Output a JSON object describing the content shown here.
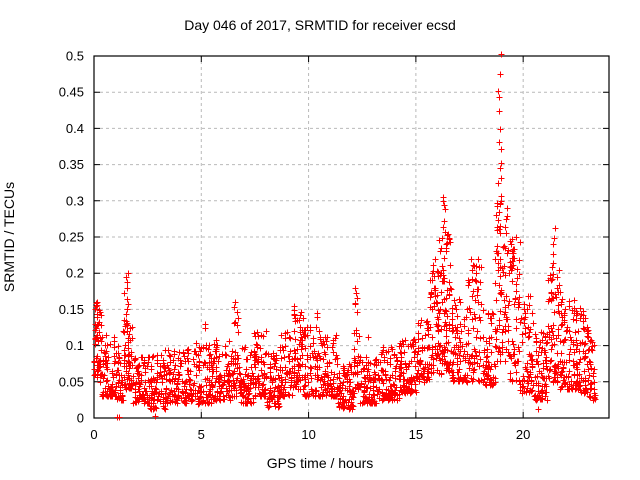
{
  "chart_data": {
    "type": "scatter",
    "title": "Day 046 of 2017, SRMTID for receiver ecsd",
    "xlabel": "GPS time / hours",
    "ylabel": "SRMTID / TECUs",
    "xlim": [
      0,
      24
    ],
    "ylim": [
      0,
      0.5
    ],
    "xticks": [
      [
        0,
        "0"
      ],
      [
        5,
        "5"
      ],
      [
        10,
        "10"
      ],
      [
        15,
        "15"
      ],
      [
        20,
        "20"
      ]
    ],
    "yticks": [
      [
        0,
        "0"
      ],
      [
        0.05,
        "0.05"
      ],
      [
        0.1,
        "0.1"
      ],
      [
        0.15,
        "0.15"
      ],
      [
        0.2,
        "0.2"
      ],
      [
        0.25,
        "0.25"
      ],
      [
        0.3,
        "0.3"
      ],
      [
        0.35,
        "0.35"
      ],
      [
        0.4,
        "0.4"
      ],
      [
        0.45,
        "0.45"
      ],
      [
        0.5,
        "0.5"
      ]
    ],
    "grid": true,
    "legend": "none",
    "marker": {
      "shape": "plus",
      "color": "#ff0000",
      "size": 7
    },
    "colors": {
      "background": "#ffffff",
      "border": "#000000",
      "grid": "#b9b9b9",
      "text": "#000000"
    },
    "series": {
      "name": "SRMTID",
      "bands_key": [
        "t_start",
        "t_end",
        "y_min",
        "y_max",
        "count",
        "low_bias_exponent"
      ],
      "bands": [
        [
          0.0,
          0.35,
          0.05,
          0.16,
          45,
          1.0
        ],
        [
          0.35,
          1.05,
          0.03,
          0.115,
          70,
          1.7
        ],
        [
          1.05,
          1.35,
          0.025,
          0.1,
          30,
          1.7
        ],
        [
          1.35,
          1.8,
          0.04,
          0.135,
          55,
          1.4
        ],
        [
          1.8,
          2.6,
          0.02,
          0.085,
          75,
          1.7
        ],
        [
          2.6,
          3.3,
          0.013,
          0.09,
          70,
          1.7
        ],
        [
          3.3,
          4.6,
          0.02,
          0.095,
          120,
          1.7
        ],
        [
          4.6,
          5.6,
          0.02,
          0.105,
          95,
          1.7
        ],
        [
          5.6,
          6.4,
          0.025,
          0.11,
          80,
          1.7
        ],
        [
          6.4,
          6.85,
          0.03,
          0.145,
          45,
          1.6
        ],
        [
          6.85,
          7.45,
          0.02,
          0.1,
          60,
          1.7
        ],
        [
          7.45,
          8.05,
          0.03,
          0.12,
          65,
          1.7
        ],
        [
          8.05,
          8.65,
          0.015,
          0.09,
          60,
          1.7
        ],
        [
          8.65,
          9.25,
          0.03,
          0.12,
          60,
          1.7
        ],
        [
          9.25,
          9.75,
          0.04,
          0.15,
          55,
          1.6
        ],
        [
          9.75,
          10.65,
          0.03,
          0.13,
          85,
          1.8
        ],
        [
          10.65,
          11.35,
          0.03,
          0.115,
          70,
          1.8
        ],
        [
          11.35,
          12.1,
          0.013,
          0.075,
          85,
          1.6
        ],
        [
          12.1,
          12.35,
          0.04,
          0.12,
          20,
          1.5
        ],
        [
          12.35,
          13.25,
          0.02,
          0.085,
          85,
          1.6
        ],
        [
          13.25,
          14.25,
          0.025,
          0.1,
          90,
          1.7
        ],
        [
          14.25,
          15.05,
          0.035,
          0.11,
          80,
          1.6
        ],
        [
          15.05,
          15.65,
          0.05,
          0.135,
          60,
          1.6
        ],
        [
          15.65,
          16.05,
          0.06,
          0.205,
          50,
          1.2
        ],
        [
          16.05,
          16.65,
          0.06,
          0.26,
          80,
          1.4
        ],
        [
          16.65,
          17.35,
          0.05,
          0.165,
          70,
          1.6
        ],
        [
          17.35,
          18.15,
          0.05,
          0.22,
          75,
          1.6
        ],
        [
          18.15,
          18.7,
          0.045,
          0.15,
          55,
          1.6
        ],
        [
          18.7,
          19.25,
          0.07,
          0.3,
          70,
          1.1
        ],
        [
          19.25,
          19.85,
          0.05,
          0.25,
          65,
          1.5
        ],
        [
          19.85,
          20.45,
          0.035,
          0.17,
          60,
          1.7
        ],
        [
          20.45,
          21.15,
          0.025,
          0.12,
          70,
          1.7
        ],
        [
          21.15,
          21.7,
          0.05,
          0.21,
          65,
          1.3
        ],
        [
          21.7,
          22.45,
          0.04,
          0.165,
          80,
          1.7
        ],
        [
          22.45,
          23.05,
          0.035,
          0.15,
          70,
          1.6
        ],
        [
          23.05,
          23.35,
          0.025,
          0.12,
          30,
          1.7
        ]
      ],
      "spikes_key": [
        "t_center",
        "t_jitter",
        "values"
      ],
      "spikes": [
        {
          "t": 0.1,
          "j": 0.06,
          "values": [
            0.16,
            0.15,
            0.14,
            0.13
          ]
        },
        {
          "t": 1.5,
          "j": 0.12,
          "values": [
            0.2,
            0.195,
            0.188,
            0.18,
            0.173,
            0.165,
            0.157,
            0.15,
            0.143,
            0.136
          ]
        },
        {
          "t": 5.2,
          "j": 0.08,
          "values": [
            0.13,
            0.124
          ]
        },
        {
          "t": 6.6,
          "j": 0.08,
          "values": [
            0.16,
            0.154,
            0.147
          ]
        },
        {
          "t": 9.4,
          "j": 0.1,
          "values": [
            0.155,
            0.149,
            0.144,
            0.138
          ]
        },
        {
          "t": 10.45,
          "j": 0.08,
          "values": [
            0.145,
            0.139
          ]
        },
        {
          "t": 12.2,
          "j": 0.07,
          "values": [
            0.18,
            0.173,
            0.166,
            0.159,
            0.157,
            0.147,
            0.122
          ]
        },
        {
          "t": 15.85,
          "j": 0.1,
          "values": [
            0.22,
            0.212,
            0.196,
            0.19
          ]
        },
        {
          "t": 16.3,
          "j": 0.12,
          "values": [
            0.305,
            0.3,
            0.294,
            0.288,
            0.272,
            0.264,
            0.257,
            0.249,
            0.24,
            0.231
          ]
        },
        {
          "t": 17.8,
          "j": 0.15,
          "values": [
            0.22,
            0.21,
            0.2,
            0.19
          ]
        },
        {
          "t": 18.9,
          "j": 0.09,
          "values": [
            0.503,
            0.475,
            0.452,
            0.443,
            0.424,
            0.399,
            0.381,
            0.371,
            0.352,
            0.345,
            0.332,
            0.324,
            0.307,
            0.3,
            0.295,
            0.285,
            0.273,
            0.265
          ]
        },
        {
          "t": 19.5,
          "j": 0.1,
          "values": [
            0.247,
            0.24,
            0.228,
            0.215,
            0.207
          ]
        },
        {
          "t": 21.45,
          "j": 0.12,
          "values": [
            0.262,
            0.249,
            0.241,
            0.227,
            0.214
          ]
        },
        {
          "t": 22.6,
          "j": 0.1,
          "values": [
            0.152,
            0.145
          ]
        }
      ],
      "points": [
        [
          12.75,
          0.112
        ],
        [
          1.08,
          0.002
        ],
        [
          1.17,
          0.002
        ],
        [
          2.84,
          0.003
        ],
        [
          20.68,
          0.012
        ]
      ]
    }
  }
}
